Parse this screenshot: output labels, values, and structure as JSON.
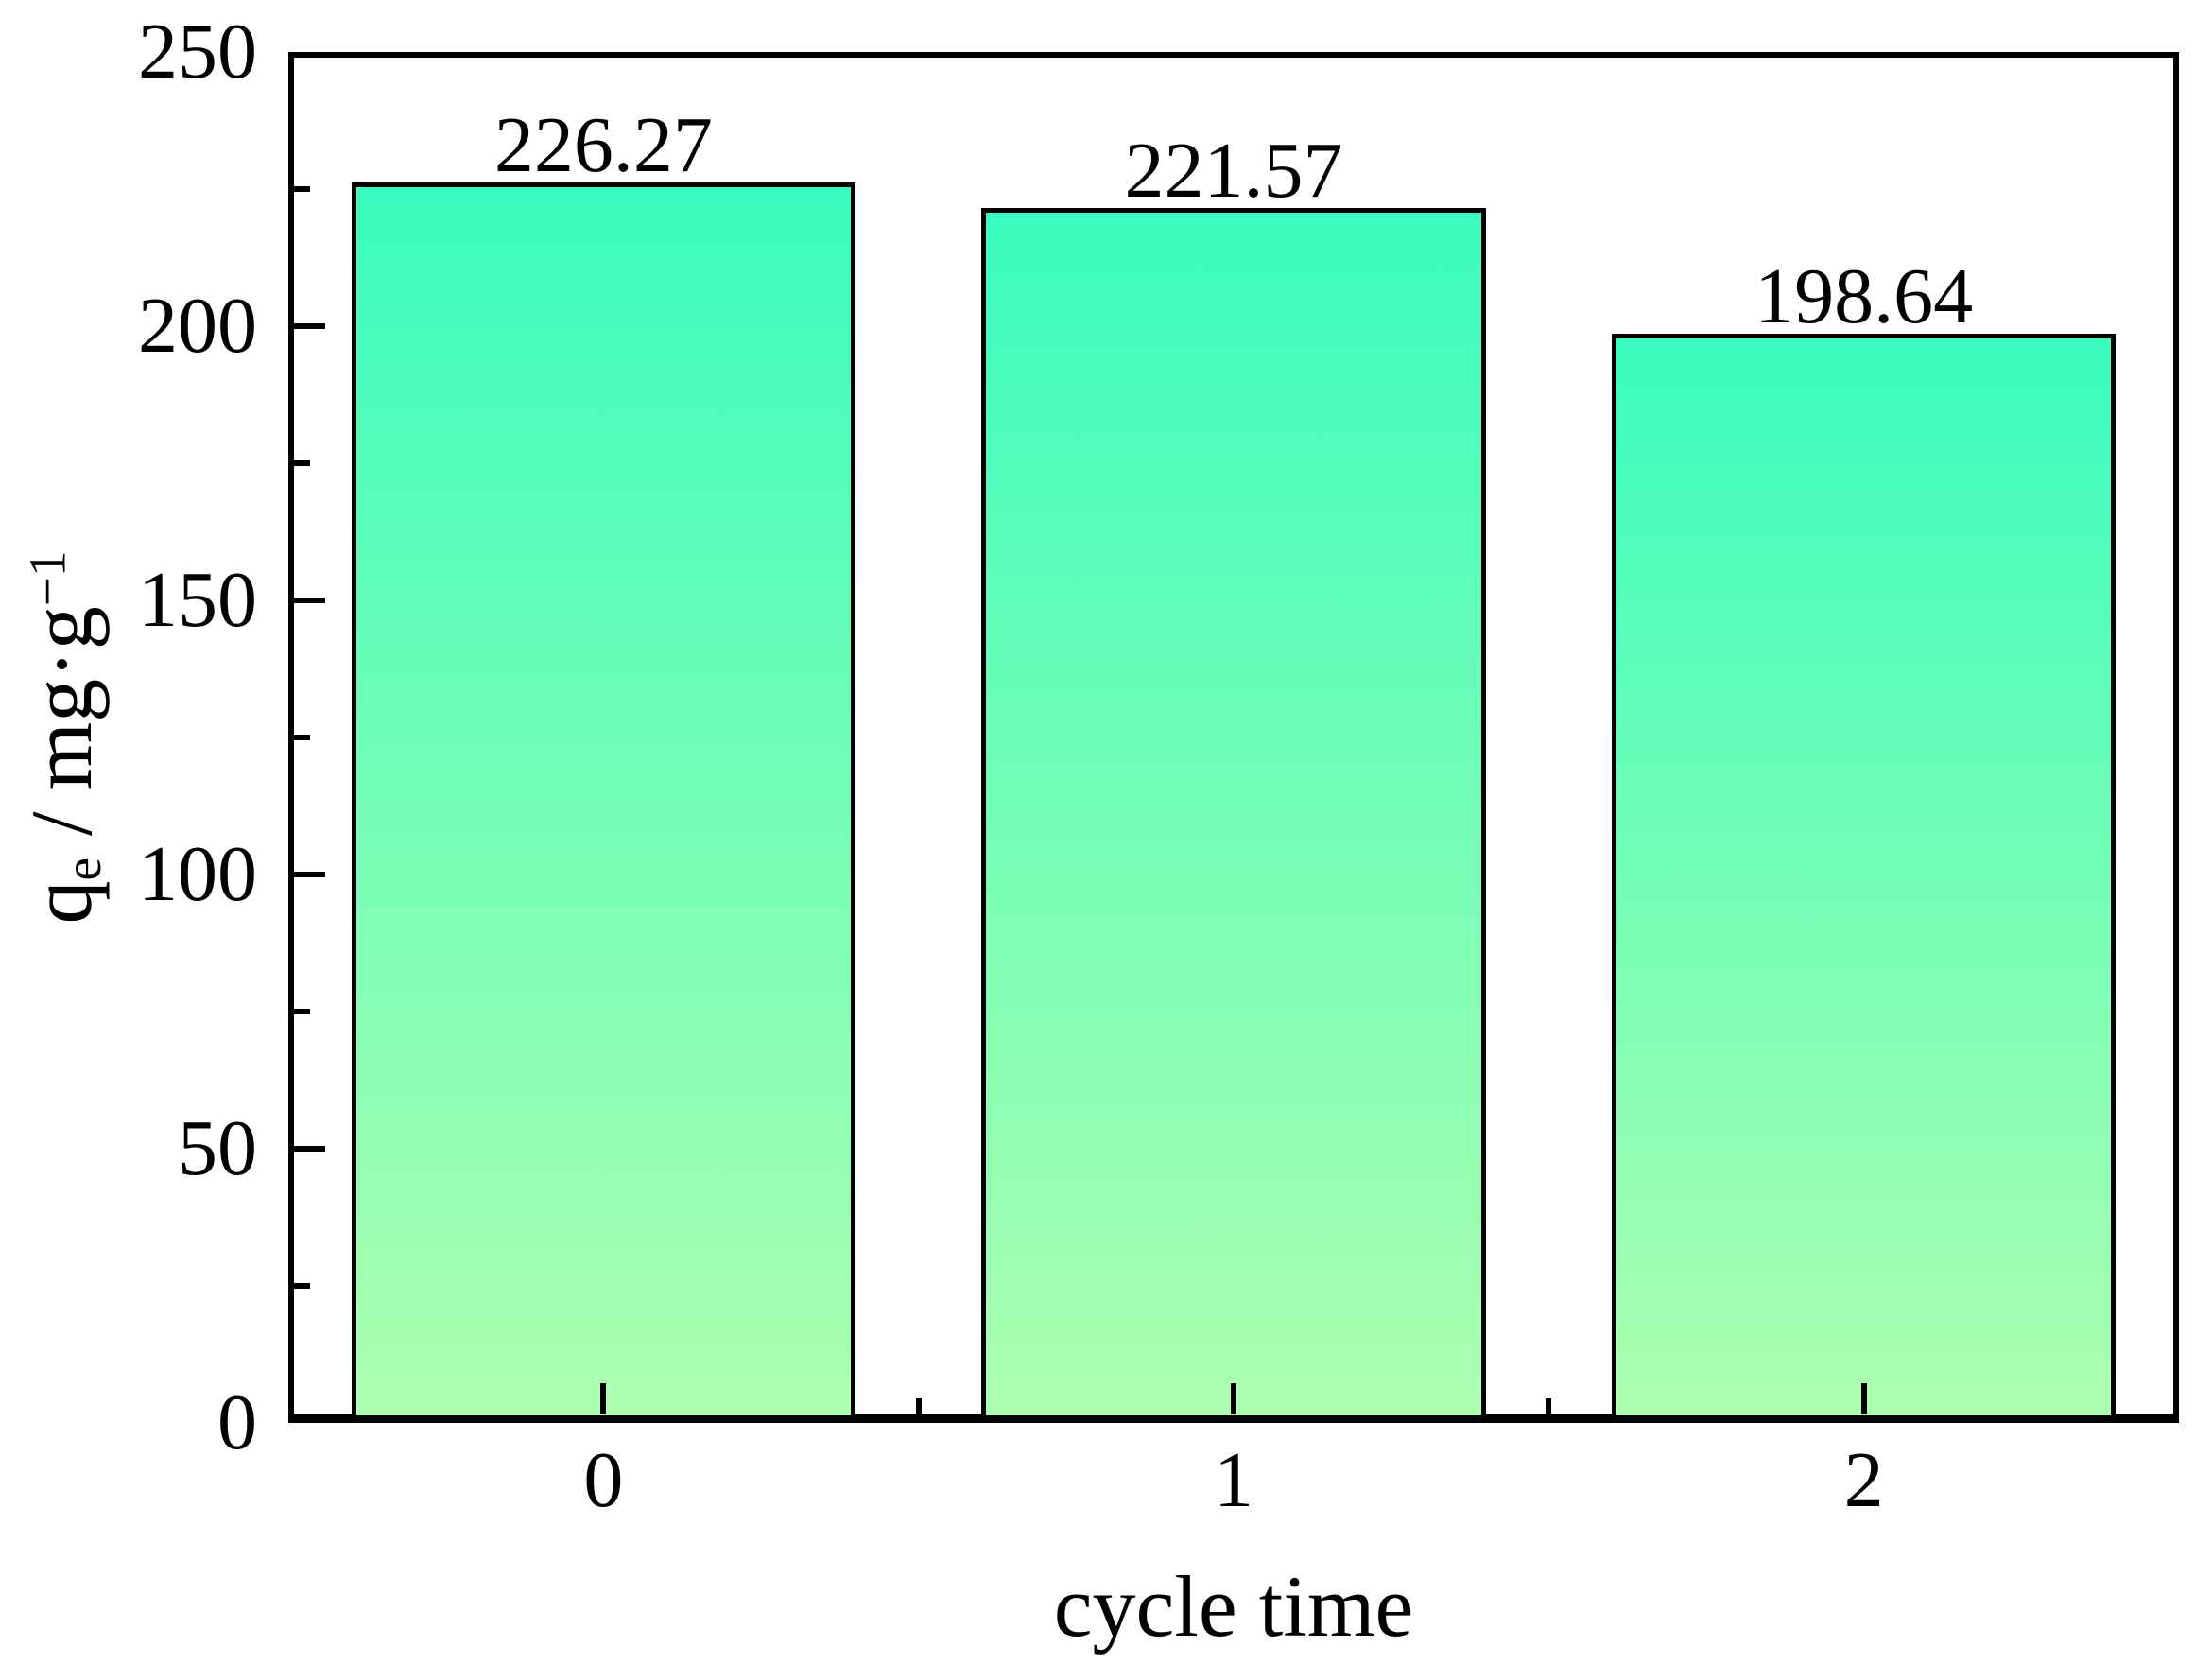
{
  "chart_data": {
    "type": "bar",
    "title": "",
    "categories": [
      "0",
      "1",
      "2"
    ],
    "values": [
      226.27,
      221.57,
      198.64
    ],
    "bar_value_labels": [
      "226.27",
      "221.57",
      "198.64"
    ],
    "xlabel": "cycle time",
    "ylabel": "qe / mg·g−1",
    "ylabel_parts": {
      "base": "q",
      "base_subscript": "e",
      "separator_and_unit": " / mg·g",
      "unit_exponent": "−1"
    },
    "ylim": [
      0,
      250
    ],
    "ytick_values": [
      0,
      50,
      100,
      150,
      200,
      250
    ],
    "ytick_labels": [
      "0",
      "50",
      "100",
      "150",
      "200",
      "250"
    ],
    "y_minor_tick_values": [
      25,
      75,
      125,
      175,
      225
    ],
    "x_minor_tick_positions": [
      0.5,
      1.5
    ],
    "bar_width_fraction": 0.8,
    "grid": false,
    "legend": null,
    "colors": {
      "bar_gradient_top": "#3afcbe",
      "bar_gradient_bottom": "#adffb0",
      "bar_border": "#000000",
      "axis": "#000000",
      "text": "#000000",
      "background": "#ffffff"
    }
  }
}
